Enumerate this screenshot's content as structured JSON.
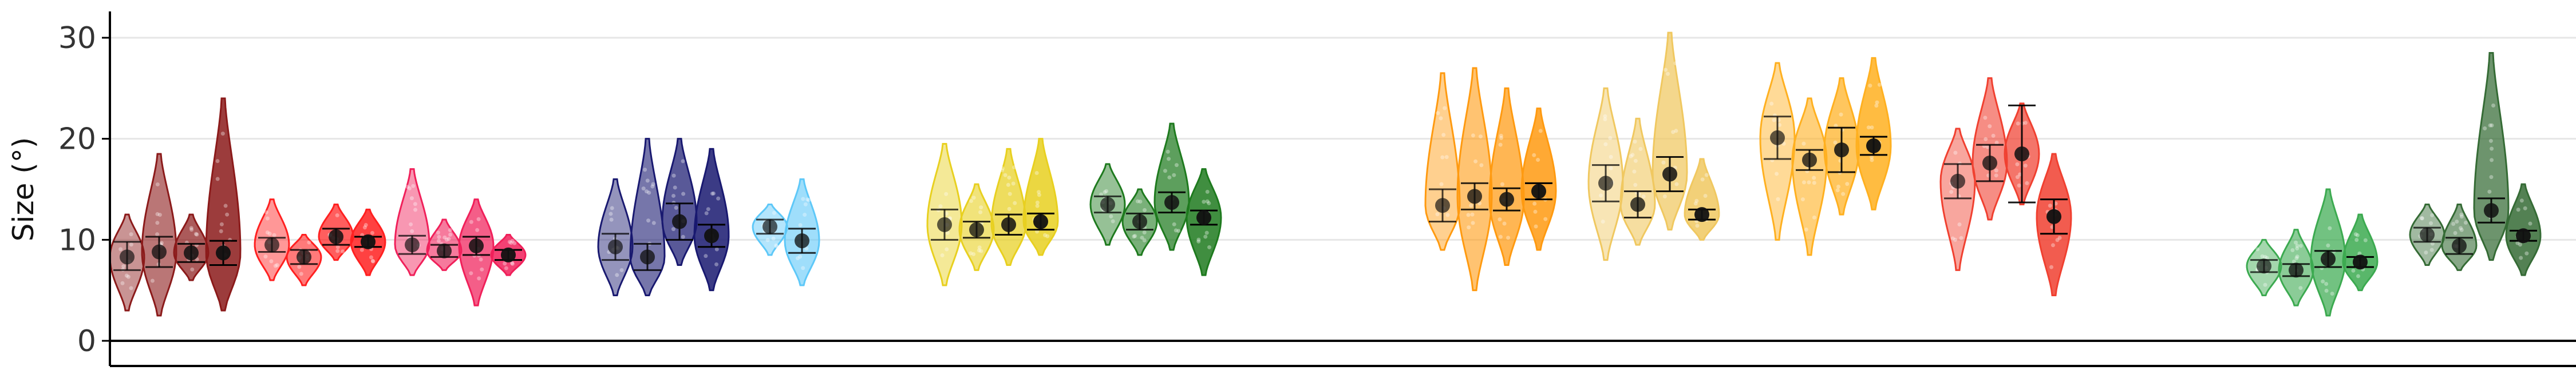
{
  "chart_data": {
    "type": "violin",
    "title": "",
    "xlabel": "",
    "ylabel": "Size (°)",
    "ylim": [
      -4,
      33
    ],
    "yticks": [
      0,
      10,
      20,
      30
    ],
    "grid": "horizontal major",
    "legend": "none",
    "groups": [
      {
        "color": "#8B1A1A",
        "violins": [
          {
            "min": 3.0,
            "max": 12.5,
            "mean": 8.3,
            "err": [
              7.0,
              9.8
            ],
            "alpha": 0.55
          },
          {
            "min": 2.5,
            "max": 18.5,
            "mean": 8.8,
            "err": [
              7.3,
              10.3
            ],
            "alpha": 0.7
          },
          {
            "min": 6.0,
            "max": 12.5,
            "mean": 8.7,
            "err": [
              7.8,
              9.6
            ],
            "alpha": 0.85
          },
          {
            "min": 3.0,
            "max": 24.0,
            "mean": 8.7,
            "err": [
              7.5,
              9.9
            ],
            "alpha": 1.0
          }
        ]
      },
      {
        "color": "#FF2020",
        "violins": [
          {
            "min": 6.0,
            "max": 14.0,
            "mean": 9.5,
            "err": [
              8.8,
              10.2
            ],
            "alpha": 0.55
          },
          {
            "min": 5.5,
            "max": 10.5,
            "mean": 8.3,
            "err": [
              7.6,
              9.0
            ],
            "alpha": 0.7
          },
          {
            "min": 8.0,
            "max": 13.5,
            "mean": 10.3,
            "err": [
              9.5,
              11.1
            ],
            "alpha": 0.85
          },
          {
            "min": 6.5,
            "max": 13.0,
            "mean": 9.8,
            "err": [
              9.3,
              10.3
            ],
            "alpha": 1.0
          }
        ]
      },
      {
        "color": "#F0205A",
        "violins": [
          {
            "min": 6.5,
            "max": 17.0,
            "mean": 9.5,
            "err": [
              8.6,
              10.4
            ],
            "alpha": 0.55
          },
          {
            "min": 7.0,
            "max": 12.0,
            "mean": 8.9,
            "err": [
              8.3,
              9.5
            ],
            "alpha": 0.7
          },
          {
            "min": 3.5,
            "max": 14.0,
            "mean": 9.4,
            "err": [
              8.5,
              10.3
            ],
            "alpha": 0.85
          },
          {
            "min": 6.5,
            "max": 10.5,
            "mean": 8.5,
            "err": [
              8.0,
              9.0
            ],
            "alpha": 1.0
          }
        ]
      },
      {
        "color": "#191970",
        "violins": [
          {
            "min": 4.5,
            "max": 16.0,
            "mean": 9.3,
            "err": [
              8.0,
              10.6
            ],
            "alpha": 0.55
          },
          {
            "min": 4.5,
            "max": 20.0,
            "mean": 8.3,
            "err": [
              7.0,
              9.6
            ],
            "alpha": 0.7
          },
          {
            "min": 7.5,
            "max": 20.0,
            "mean": 11.8,
            "err": [
              10.0,
              13.6
            ],
            "alpha": 0.85
          },
          {
            "min": 5.0,
            "max": 19.0,
            "mean": 10.4,
            "err": [
              9.3,
              11.5
            ],
            "alpha": 1.0
          }
        ]
      },
      {
        "color": "#5EC8F8",
        "violins": [
          {
            "min": 8.5,
            "max": 13.5,
            "mean": 11.3,
            "err": [
              10.6,
              12.0
            ],
            "alpha": 0.55
          },
          {
            "min": 5.5,
            "max": 16.0,
            "mean": 9.9,
            "err": [
              8.7,
              11.1
            ],
            "alpha": 0.7
          }
        ]
      },
      {
        "color": "#E8D020",
        "violins": [
          {
            "min": 5.5,
            "max": 19.5,
            "mean": 11.5,
            "err": [
              10.0,
              13.0
            ],
            "alpha": 0.55
          },
          {
            "min": 7.0,
            "max": 15.5,
            "mean": 11.0,
            "err": [
              10.2,
              11.8
            ],
            "alpha": 0.7
          },
          {
            "min": 7.5,
            "max": 19.0,
            "mean": 11.5,
            "err": [
              10.5,
              12.5
            ],
            "alpha": 0.85
          },
          {
            "min": 8.5,
            "max": 20.0,
            "mean": 11.8,
            "err": [
              11.0,
              12.6
            ],
            "alpha": 1.0
          }
        ]
      },
      {
        "color": "#1E7A1E",
        "violins": [
          {
            "min": 9.5,
            "max": 17.5,
            "mean": 13.5,
            "err": [
              12.7,
              14.3
            ],
            "alpha": 0.55
          },
          {
            "min": 8.5,
            "max": 15.0,
            "mean": 11.8,
            "err": [
              11.0,
              12.6
            ],
            "alpha": 0.7
          },
          {
            "min": 9.0,
            "max": 21.5,
            "mean": 13.7,
            "err": [
              12.7,
              14.7
            ],
            "alpha": 0.85
          },
          {
            "min": 6.5,
            "max": 17.0,
            "mean": 12.2,
            "err": [
              11.5,
              12.9
            ],
            "alpha": 1.0
          }
        ]
      },
      {
        "color": "#FF9A10",
        "violins": [
          {
            "min": 9.0,
            "max": 26.5,
            "mean": 13.4,
            "err": [
              11.8,
              15.0
            ],
            "alpha": 0.55
          },
          {
            "min": 5.0,
            "max": 27.0,
            "mean": 14.3,
            "err": [
              13.0,
              15.6
            ],
            "alpha": 0.7
          },
          {
            "min": 7.5,
            "max": 25.0,
            "mean": 14.0,
            "err": [
              12.9,
              15.1
            ],
            "alpha": 0.85
          },
          {
            "min": 9.0,
            "max": 23.0,
            "mean": 14.8,
            "err": [
              14.0,
              15.6
            ],
            "alpha": 1.0
          }
        ]
      },
      {
        "color": "#F0C860",
        "violins": [
          {
            "min": 8.0,
            "max": 25.0,
            "mean": 15.6,
            "err": [
              13.8,
              17.4
            ],
            "alpha": 0.55
          },
          {
            "min": 9.5,
            "max": 22.0,
            "mean": 13.5,
            "err": [
              12.2,
              14.8
            ],
            "alpha": 0.7
          },
          {
            "min": 11.0,
            "max": 30.5,
            "mean": 16.5,
            "err": [
              14.8,
              18.2
            ],
            "alpha": 0.85
          },
          {
            "min": 10.0,
            "max": 18.0,
            "mean": 12.5,
            "err": [
              12.0,
              13.0
            ],
            "alpha": 1.0
          }
        ]
      },
      {
        "color": "#FFB020",
        "violins": [
          {
            "min": 10.0,
            "max": 27.5,
            "mean": 20.1,
            "err": [
              18.0,
              22.2
            ],
            "alpha": 0.55
          },
          {
            "min": 8.5,
            "max": 24.0,
            "mean": 17.9,
            "err": [
              16.9,
              18.9
            ],
            "alpha": 0.7
          },
          {
            "min": 12.5,
            "max": 26.0,
            "mean": 18.9,
            "err": [
              16.7,
              21.1
            ],
            "alpha": 0.85
          },
          {
            "min": 13.0,
            "max": 28.0,
            "mean": 19.3,
            "err": [
              18.4,
              20.2
            ],
            "alpha": 1.0
          }
        ]
      },
      {
        "color": "#F04030",
        "violins": [
          {
            "min": 7.0,
            "max": 21.0,
            "mean": 15.8,
            "err": [
              14.1,
              17.5
            ],
            "alpha": 0.55
          },
          {
            "min": 12.0,
            "max": 26.0,
            "mean": 17.6,
            "err": [
              15.8,
              19.4
            ],
            "alpha": 0.7
          },
          {
            "min": 13.5,
            "max": 23.5,
            "mean": 18.5,
            "err": [
              13.7,
              23.3
            ],
            "alpha": 0.85
          },
          {
            "min": 4.5,
            "max": 18.5,
            "mean": 12.3,
            "err": [
              10.6,
              14.0
            ],
            "alpha": 1.0
          }
        ]
      },
      {
        "color": "#3CAA50",
        "violins": [
          {
            "min": 4.5,
            "max": 10.0,
            "mean": 7.4,
            "err": [
              6.8,
              8.0
            ],
            "alpha": 0.55
          },
          {
            "min": 3.5,
            "max": 11.0,
            "mean": 7.0,
            "err": [
              6.4,
              7.6
            ],
            "alpha": 0.7
          },
          {
            "min": 2.5,
            "max": 15.0,
            "mean": 8.1,
            "err": [
              7.3,
              8.9
            ],
            "alpha": 0.85
          },
          {
            "min": 5.0,
            "max": 12.5,
            "mean": 7.8,
            "err": [
              7.3,
              8.3
            ],
            "alpha": 1.0
          }
        ]
      },
      {
        "color": "#356B35",
        "violins": [
          {
            "min": 7.5,
            "max": 13.5,
            "mean": 10.5,
            "err": [
              9.8,
              11.2
            ],
            "alpha": 0.55
          },
          {
            "min": 7.0,
            "max": 13.5,
            "mean": 9.4,
            "err": [
              8.6,
              10.2
            ],
            "alpha": 0.7
          },
          {
            "min": 8.0,
            "max": 28.5,
            "mean": 12.9,
            "err": [
              11.7,
              14.1
            ],
            "alpha": 0.85
          },
          {
            "min": 6.5,
            "max": 15.5,
            "mean": 10.4,
            "err": [
              9.9,
              10.9
            ],
            "alpha": 1.0
          }
        ]
      }
    ]
  }
}
